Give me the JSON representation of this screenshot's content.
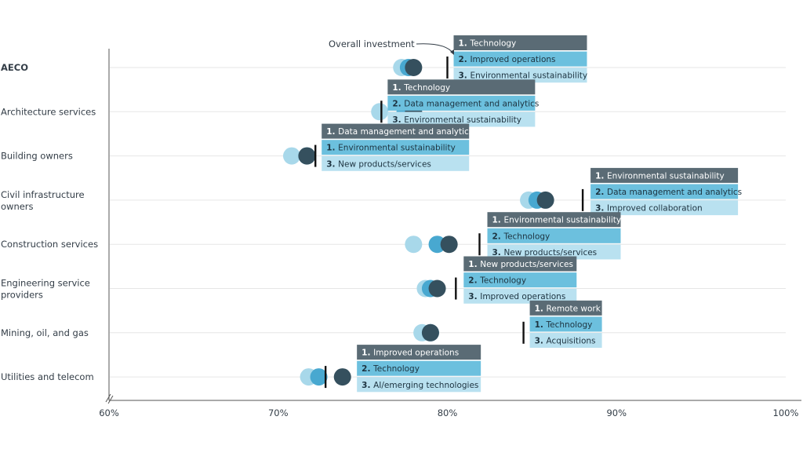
{
  "colors": {
    "dark": "#35505e",
    "mid": "#48a8d0",
    "light": "#a8d8ea",
    "box_dark": "#5a6b75",
    "box_mid": "#6cc0de",
    "box_light": "#b9e1f0",
    "marker": "#111111",
    "axis": "#555555",
    "gridline": "#e6e6e6"
  },
  "chart_data": {
    "type": "scatter",
    "xlim": [
      60,
      100
    ],
    "x_ticks": [
      "60%",
      "70%",
      "80%",
      "90%",
      "100%"
    ],
    "x_tick_values": [
      60,
      70,
      80,
      90,
      100
    ],
    "annotation": "Overall investment",
    "grid": false,
    "categories": [
      {
        "label": "AECO",
        "bold": true,
        "dots": [
          77.3,
          77.7,
          78.0
        ],
        "marker": 80.0,
        "priorities": [
          {
            "rank": "1.",
            "text": "Technology"
          },
          {
            "rank": "2.",
            "text": "Improved operations"
          },
          {
            "rank": "3.",
            "text": "Environmental sustainability"
          }
        ]
      },
      {
        "label": "Architecture services",
        "bold": false,
        "dots": [
          76.0,
          77.5,
          78.0
        ],
        "marker": 76.1,
        "priorities": [
          {
            "rank": "1.",
            "text": "Technology"
          },
          {
            "rank": "2.",
            "text": "Data management and analytics"
          },
          {
            "rank": "3.",
            "text": "Environmental sustainability"
          }
        ]
      },
      {
        "label": "Building owners",
        "bold": false,
        "dots": [
          70.8,
          71.7,
          71.7
        ],
        "marker": 72.2,
        "priorities": [
          {
            "rank": "1.",
            "text": "Data management and analytics"
          },
          {
            "rank": "1.",
            "text": "Environmental sustainability"
          },
          {
            "rank": "3.",
            "text": "New products/services"
          }
        ]
      },
      {
        "label": "Civil infrastructure owners",
        "bold": false,
        "dots": [
          84.8,
          85.3,
          85.8
        ],
        "marker": 88.0,
        "priorities": [
          {
            "rank": "1.",
            "text": "Environmental sustainability"
          },
          {
            "rank": "2.",
            "text": "Data management and analytics"
          },
          {
            "rank": "3.",
            "text": "Improved collaboration"
          }
        ]
      },
      {
        "label": "Construction services",
        "bold": false,
        "dots": [
          78.0,
          79.4,
          80.1
        ],
        "marker": 81.9,
        "priorities": [
          {
            "rank": "1.",
            "text": "Environmental sustainability"
          },
          {
            "rank": "2.",
            "text": "Technology"
          },
          {
            "rank": "3.",
            "text": "New products/services"
          }
        ]
      },
      {
        "label": "Engineering service providers",
        "bold": false,
        "dots": [
          78.7,
          79.0,
          79.4
        ],
        "marker": 80.5,
        "priorities": [
          {
            "rank": "1.",
            "text": "New products/services"
          },
          {
            "rank": "2.",
            "text": "Technology"
          },
          {
            "rank": "3.",
            "text": "Improved operations"
          }
        ]
      },
      {
        "label": "Mining, oil, and gas",
        "bold": false,
        "dots": [
          78.5,
          79.0,
          79.0
        ],
        "marker": 84.5,
        "priorities": [
          {
            "rank": "1.",
            "text": "Remote work"
          },
          {
            "rank": "1.",
            "text": "Technology"
          },
          {
            "rank": "3.",
            "text": "Acquisitions"
          }
        ]
      },
      {
        "label": "Utilities and telecom",
        "bold": false,
        "dots": [
          71.8,
          72.4,
          73.8
        ],
        "marker": 72.8,
        "priorities": [
          {
            "rank": "1.",
            "text": "Improved operations"
          },
          {
            "rank": "2.",
            "text": "Technology"
          },
          {
            "rank": "3.",
            "text": "AI/emerging technologies"
          }
        ]
      }
    ]
  }
}
